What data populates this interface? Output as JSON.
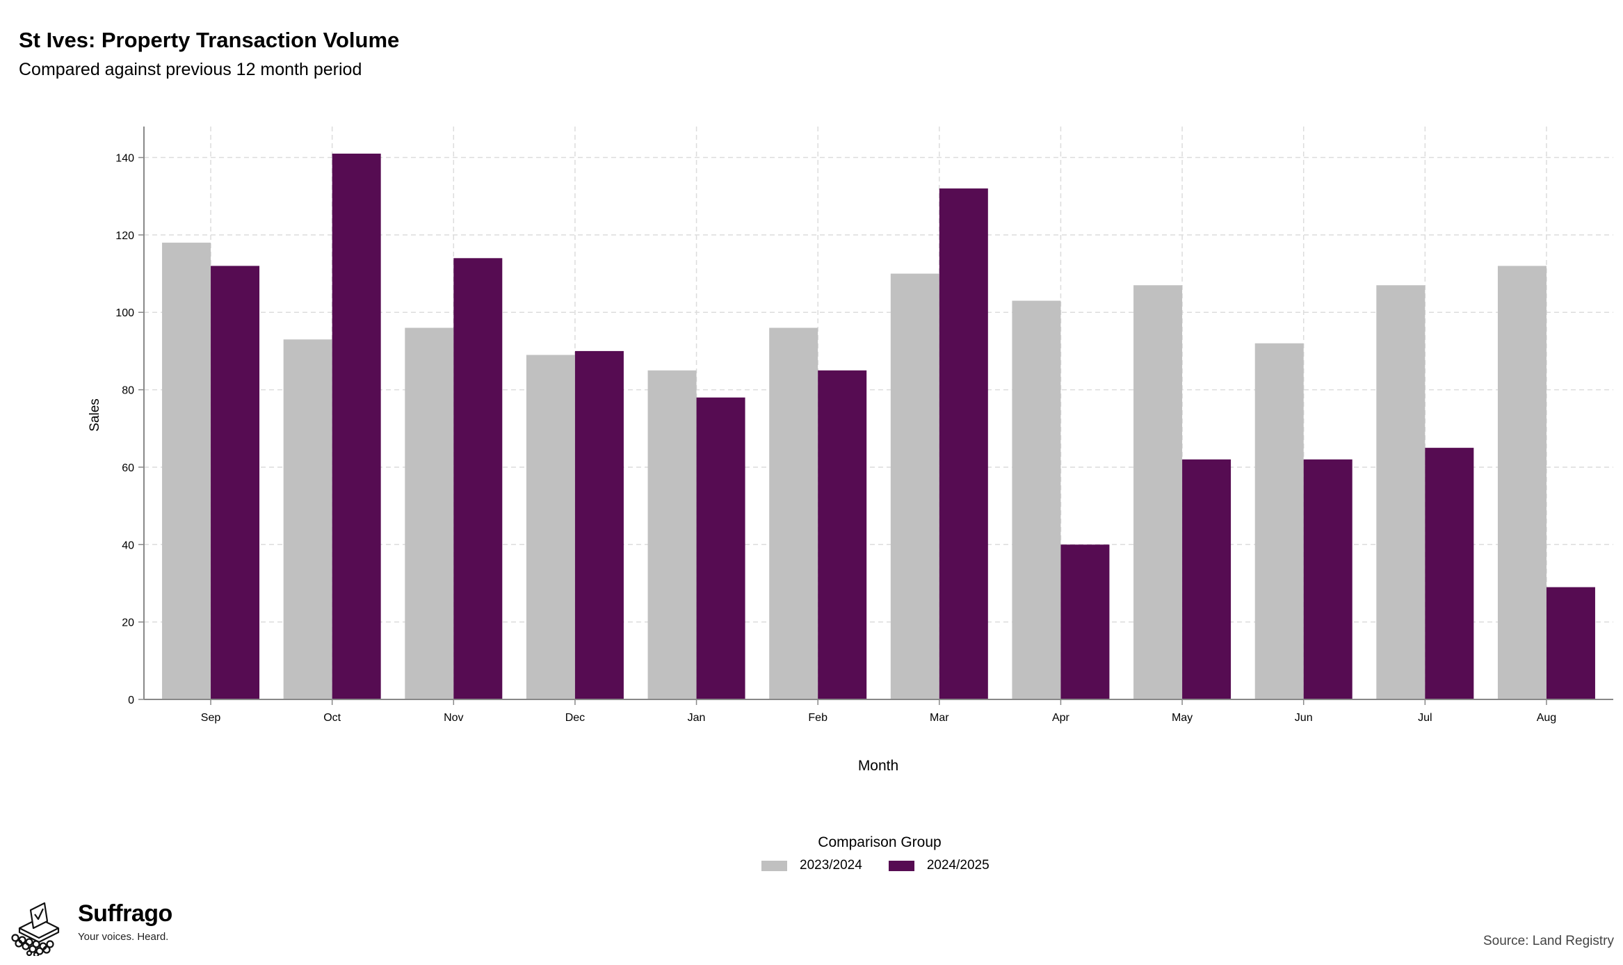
{
  "header": {
    "title": "St Ives: Property Transaction Volume",
    "subtitle": "Compared against previous 12 month period"
  },
  "colors": {
    "series_2023_2024": "#c0c0c0",
    "series_2024_2025": "#560c52",
    "grid": "#dcdcdc",
    "axis": "#888888"
  },
  "chart_data": {
    "type": "bar",
    "title": "St Ives: Property Transaction Volume",
    "subtitle": "Compared against previous 12 month period",
    "xlabel": "Month",
    "ylabel": "Sales",
    "categories": [
      "Sep",
      "Oct",
      "Nov",
      "Dec",
      "Jan",
      "Feb",
      "Mar",
      "Apr",
      "May",
      "Jun",
      "Jul",
      "Aug"
    ],
    "series": [
      {
        "name": "2023/2024",
        "values": [
          118,
          93,
          96,
          89,
          85,
          96,
          110,
          103,
          107,
          92,
          107,
          112
        ]
      },
      {
        "name": "2024/2025",
        "values": [
          112,
          141,
          114,
          90,
          78,
          85,
          132,
          40,
          62,
          62,
          65,
          29
        ]
      }
    ],
    "ylim": [
      0,
      148
    ],
    "yticks": [
      0,
      20,
      40,
      60,
      80,
      100,
      120,
      140
    ],
    "grid": true,
    "legend": {
      "title": "Comparison Group",
      "position": "bottom-center"
    }
  },
  "branding": {
    "name": "Suffrago",
    "tagline": "Your voices. Heard.",
    "logo_icon": "ballot-box-icon"
  },
  "footer": {
    "source": "Source: Land Registry"
  }
}
